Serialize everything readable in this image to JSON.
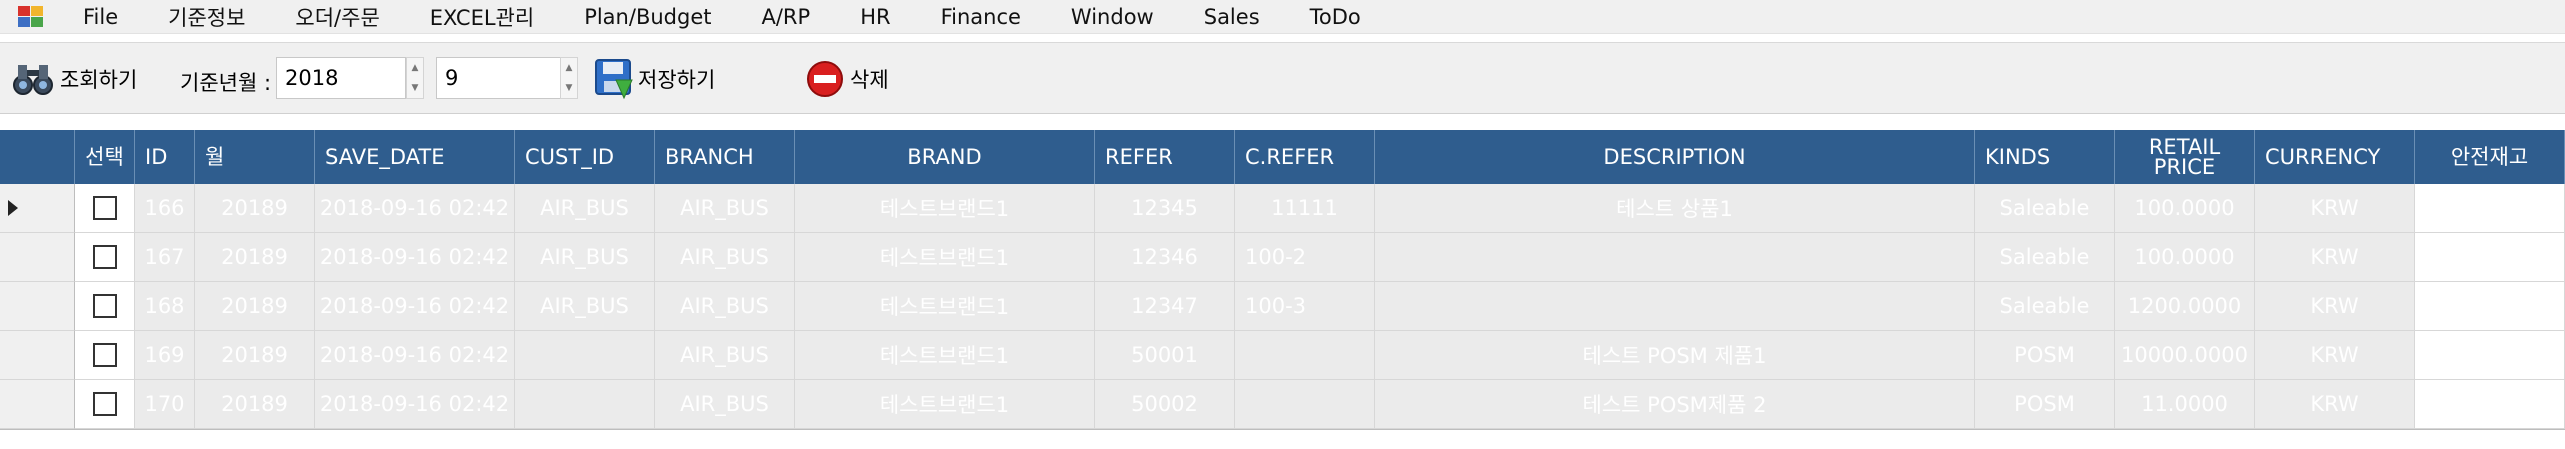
{
  "menu": [
    "File",
    "기준정보",
    "오더/주문",
    "EXCEL관리",
    "Plan/Budget",
    "A/RP",
    "HR",
    "Finance",
    "Window",
    "Sales",
    "ToDo"
  ],
  "toolbar": {
    "search_label": "조회하기",
    "date_label": "기준년월 :",
    "year_value": "2018",
    "month_value": "9",
    "save_label": "저장하기",
    "delete_label": "삭제"
  },
  "grid": {
    "columns": [
      "선택",
      "ID",
      "월",
      "SAVE_DATE",
      "CUST_ID",
      "BRANCH",
      "BRAND",
      "REFER",
      "C.REFER",
      "DESCRIPTION",
      "KINDS",
      "RETAIL PRICE",
      "CURRENCY",
      "안전재고"
    ],
    "rows": [
      {
        "id": "166",
        "month": "20189",
        "save_date": "2018-09-16 02:42",
        "cust_id": "AIR_BUS",
        "branch": "AIR_BUS",
        "brand": "테스트브랜드1",
        "refer": "12345",
        "c_refer": "11111",
        "description": "테스트 상품1",
        "kinds": "Saleable",
        "retail_price": "100.0000",
        "currency": "KRW",
        "safety_stock": ""
      },
      {
        "id": "167",
        "month": "20189",
        "save_date": "2018-09-16 02:42",
        "cust_id": "AIR_BUS",
        "branch": "AIR_BUS",
        "brand": "테스트브랜드1",
        "refer": "12346",
        "c_refer": "100-2",
        "description": "",
        "kinds": "Saleable",
        "retail_price": "100.0000",
        "currency": "KRW",
        "safety_stock": ""
      },
      {
        "id": "168",
        "month": "20189",
        "save_date": "2018-09-16 02:42",
        "cust_id": "AIR_BUS",
        "branch": "AIR_BUS",
        "brand": "테스트브랜드1",
        "refer": "12347",
        "c_refer": "100-3",
        "description": "",
        "kinds": "Saleable",
        "retail_price": "1200.0000",
        "currency": "KRW",
        "safety_stock": ""
      },
      {
        "id": "169",
        "month": "20189",
        "save_date": "2018-09-16 02:42",
        "cust_id": "",
        "branch": "AIR_BUS",
        "brand": "테스트브랜드1",
        "refer": "50001",
        "c_refer": "",
        "description": "테스트 POSM 제품1",
        "kinds": "POSM",
        "retail_price": "10000.0000",
        "currency": "KRW",
        "safety_stock": ""
      },
      {
        "id": "170",
        "month": "20189",
        "save_date": "2018-09-16 02:42",
        "cust_id": "",
        "branch": "AIR_BUS",
        "brand": "테스트브랜드1",
        "refer": "50002",
        "c_refer": "",
        "description": "테스트 POSM제품 2",
        "kinds": "POSM",
        "retail_price": "11.0000",
        "currency": "KRW",
        "safety_stock": ""
      }
    ]
  },
  "colors": {
    "header_bg": "#2f5d8e",
    "cell_bg": "#ebebeb",
    "menu_bg": "#f0f0f0"
  }
}
